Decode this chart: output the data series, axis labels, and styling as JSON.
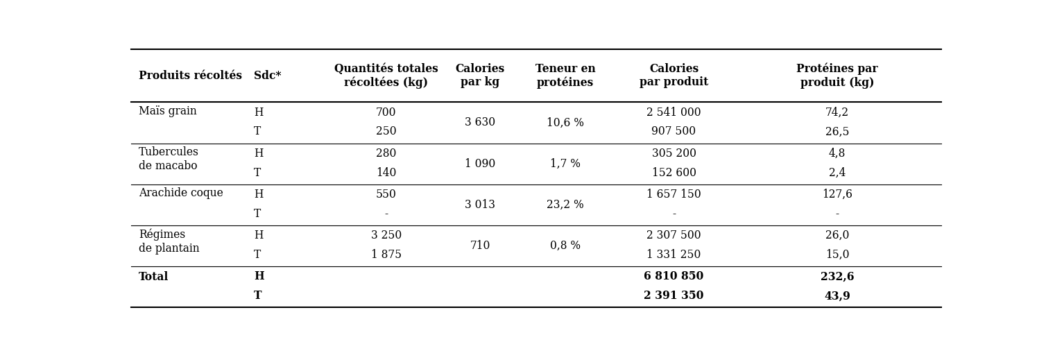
{
  "headers": [
    "Produits récoltés",
    "Sdc*",
    "Quantités totales\nrécoltées (kg)",
    "Calories\npar kg",
    "Teneur en\nprotéines",
    "Calories\npar produit",
    "Protéines par\nproduit (kg)"
  ],
  "rows": [
    {
      "product": "Maïs grain",
      "sdc": [
        "H",
        "T"
      ],
      "qty": [
        "700",
        "250"
      ],
      "cal_kg": "3 630",
      "protein_pct": "10,6 %",
      "cal_prod": [
        "2 541 000",
        "907 500"
      ],
      "prot_prod": [
        "74,2",
        "26,5"
      ]
    },
    {
      "product": "Tubercules\nde macabo",
      "sdc": [
        "H",
        "T"
      ],
      "qty": [
        "280",
        "140"
      ],
      "cal_kg": "1 090",
      "protein_pct": "1,7 %",
      "cal_prod": [
        "305 200",
        "152 600"
      ],
      "prot_prod": [
        "4,8",
        "2,4"
      ]
    },
    {
      "product": "Arachide coque",
      "sdc": [
        "H",
        "T"
      ],
      "qty": [
        "550",
        "-"
      ],
      "cal_kg": "3 013",
      "protein_pct": "23,2 %",
      "cal_prod": [
        "1 657 150",
        "-"
      ],
      "prot_prod": [
        "127,6",
        "-"
      ]
    },
    {
      "product": "Régimes\nde plantain",
      "sdc": [
        "H",
        "T"
      ],
      "qty": [
        "3 250",
        "1 875"
      ],
      "cal_kg": "710",
      "protein_pct": "0,8 %",
      "cal_prod": [
        "2 307 500",
        "1 331 250"
      ],
      "prot_prod": [
        "26,0",
        "15,0"
      ]
    }
  ],
  "total": {
    "label": "Total",
    "sdc": [
      "H",
      "T"
    ],
    "cal_prod": [
      "6 810 850",
      "2 391 350"
    ],
    "prot_prod": [
      "232,6",
      "43,9"
    ]
  },
  "bg_color": "white",
  "text_color": "black",
  "line_color": "black",
  "header_fontsize": 11.2,
  "body_fontsize": 11.2,
  "font_family": "DejaVu Serif"
}
